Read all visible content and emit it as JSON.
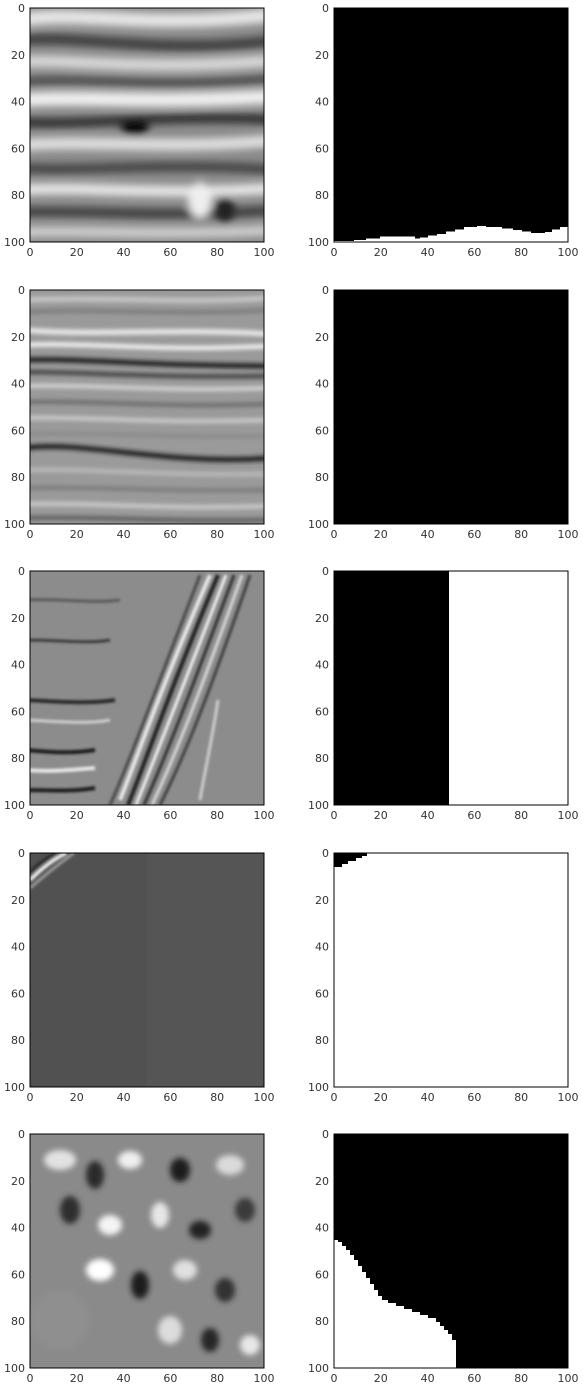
{
  "figure": {
    "columns": [
      "seismic-image",
      "salt-mask"
    ],
    "axis_ticks": [
      "0",
      "20",
      "40",
      "60",
      "80",
      "100"
    ],
    "axis_range": [
      0,
      100
    ]
  },
  "rows": [
    {
      "image_style": "wide horizontal blurry light/dark bands",
      "mask": {
        "description": "black with white region along bottom",
        "white_boundary_profile": [
          [
            0,
            100
          ],
          [
            10,
            99.5
          ],
          [
            20,
            98
          ],
          [
            35,
            97.5
          ],
          [
            40,
            98
          ],
          [
            50,
            95
          ],
          [
            62,
            92
          ],
          [
            70,
            93
          ],
          [
            80,
            95
          ],
          [
            90,
            96
          ],
          [
            100,
            93
          ]
        ]
      }
    },
    {
      "image_style": "fine layered gray texture with dark horizons",
      "mask": {
        "description": "fully black"
      }
    },
    {
      "image_style": "noisy texture with diagonal bright/dark streaks",
      "mask": {
        "description": "left half black, right half white",
        "split_x": 49
      }
    },
    {
      "image_style": "flat dark gray with bright streak at top-left corner",
      "mask": {
        "description": "white with small black corner top-left"
      }
    },
    {
      "image_style": "blotchy mottled gray texture",
      "mask": {
        "description": "black with white region bottom-left"
      }
    }
  ],
  "colors": {
    "black": "#000000",
    "white": "#ffffff",
    "frame": "#000000",
    "tick_text": "#333333"
  }
}
